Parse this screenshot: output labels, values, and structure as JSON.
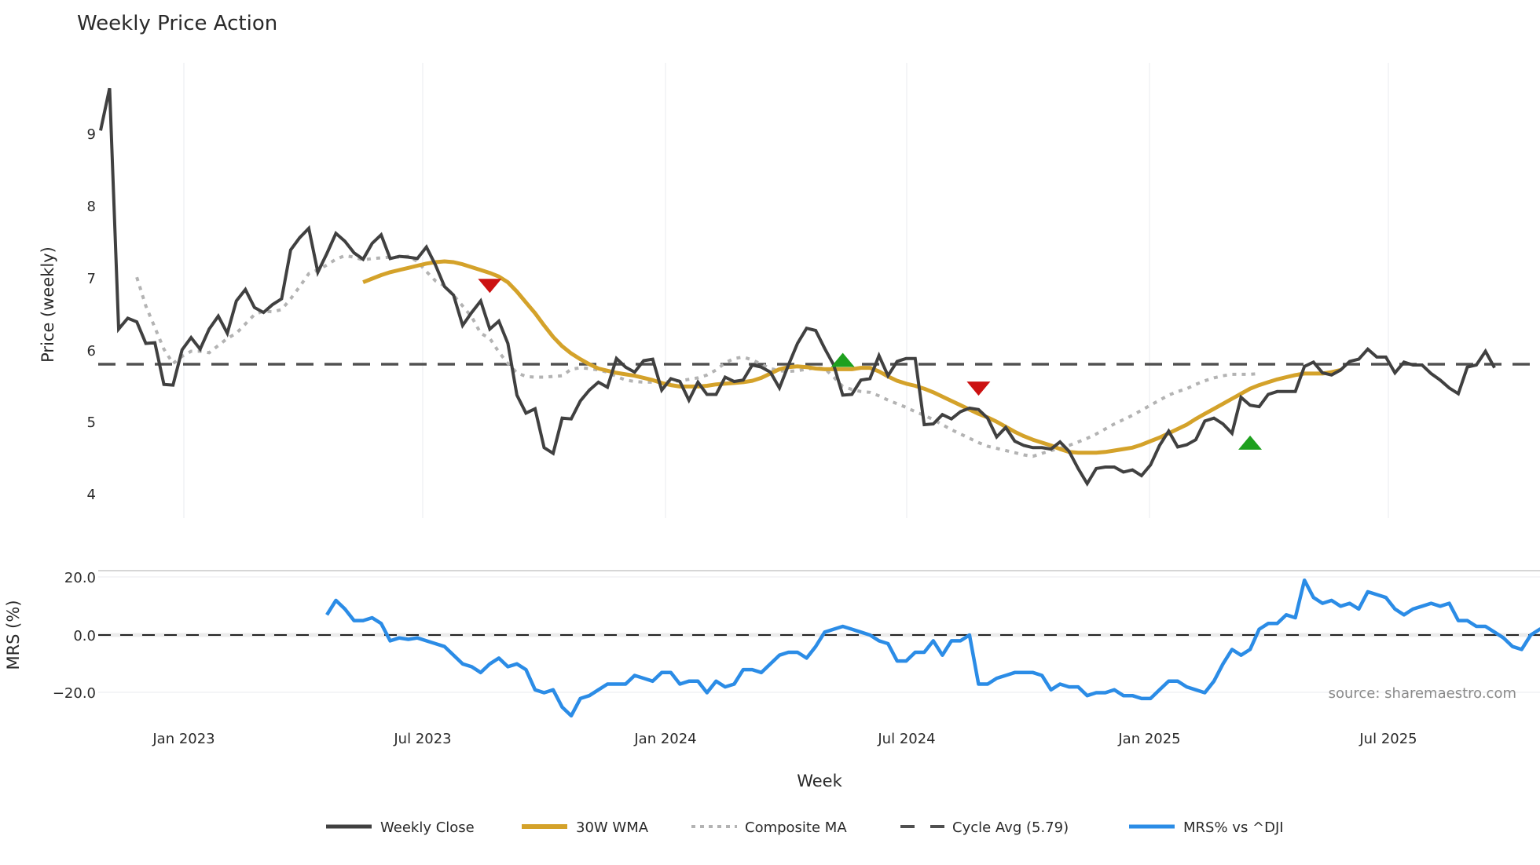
{
  "title": "Weekly Price Action",
  "source_text": "source: sharemaestro.com",
  "legend": [
    {
      "label": "Weekly Close",
      "style": "solid",
      "color": "#404040"
    },
    {
      "label": "30W WMA",
      "style": "solid",
      "color": "#d4a22a"
    },
    {
      "label": "Composite MA",
      "style": "dotted",
      "color": "#b3b3b3"
    },
    {
      "label": "Cycle Avg (5.79)",
      "style": "dashed",
      "color": "#505050"
    },
    {
      "label": "MRS% vs ^DJI",
      "style": "solid",
      "color": "#2b8ce6"
    }
  ],
  "colors": {
    "close": "#404040",
    "wma": "#d4a22a",
    "composite": "#b3b3b3",
    "cycle": "#505050",
    "mrs": "#2b8ce6",
    "sell_marker": "#cc1111",
    "buy_marker": "#1ea01e",
    "grid": "#e9ebef"
  },
  "chart_data": [
    {
      "type": "line",
      "title": "Weekly Price Action",
      "xlabel": "Week",
      "ylabel": "Price (weekly)",
      "ylim": [
        3.9,
        9.7
      ],
      "yticks": [
        4,
        5,
        6,
        7,
        8,
        9
      ],
      "xticks": [
        "Jan 2023",
        "Jul 2023",
        "Jan 2024",
        "Jul 2024",
        "Jan 2025",
        "Jul 2025"
      ],
      "grid": "vertical only",
      "legend_position": "bottom",
      "series": [
        {
          "name": "Weekly Close",
          "start_index": 0,
          "values": [
            9.04,
            9.63,
            6.28,
            6.43,
            6.38,
            6.08,
            6.09,
            5.51,
            5.5,
            5.99,
            6.16,
            6.0,
            6.28,
            6.46,
            6.22,
            6.67,
            6.83,
            6.58,
            6.51,
            6.62,
            6.7,
            7.38,
            7.55,
            7.68,
            7.07,
            7.33,
            7.61,
            7.5,
            7.34,
            7.25,
            7.47,
            7.59,
            7.26,
            7.29,
            7.28,
            7.26,
            7.42,
            7.17,
            6.87,
            6.75,
            6.33,
            6.51,
            6.67,
            6.28,
            6.39,
            6.08,
            5.36,
            5.11,
            5.17,
            4.63,
            4.55,
            5.04,
            5.03,
            5.28,
            5.43,
            5.54,
            5.47,
            5.87,
            5.75,
            5.68,
            5.84,
            5.86,
            5.43,
            5.59,
            5.55,
            5.29,
            5.54,
            5.37,
            5.37,
            5.61,
            5.55,
            5.57,
            5.78,
            5.75,
            5.68,
            5.46,
            5.78,
            6.08,
            6.29,
            6.26,
            6.01,
            5.78,
            5.36,
            5.37,
            5.57,
            5.59,
            5.91,
            5.63,
            5.83,
            5.87,
            5.87,
            4.95,
            4.96,
            5.09,
            5.03,
            5.13,
            5.18,
            5.16,
            5.04,
            4.78,
            4.91,
            4.72,
            4.66,
            4.63,
            4.63,
            4.61,
            4.71,
            4.58,
            4.34,
            4.13,
            4.34,
            4.36,
            4.36,
            4.29,
            4.32,
            4.24,
            4.39,
            4.66,
            4.86,
            4.64,
            4.67,
            4.74,
            5.0,
            5.04,
            4.96,
            4.83,
            5.33,
            5.22,
            5.2,
            5.37,
            5.41,
            5.41,
            5.41,
            5.76,
            5.82,
            5.67,
            5.64,
            5.71,
            5.83,
            5.86,
            6.0,
            5.89,
            5.89,
            5.67,
            5.82,
            5.78,
            5.78,
            5.66,
            5.57,
            5.46,
            5.38,
            5.75,
            5.78,
            5.97,
            5.74
          ]
        },
        {
          "name": "30W WMA",
          "start_index": 29,
          "values": [
            6.93,
            6.98,
            7.03,
            7.07,
            7.1,
            7.13,
            7.16,
            7.19,
            7.21,
            7.22,
            7.21,
            7.18,
            7.14,
            7.1,
            7.06,
            7.01,
            6.93,
            6.8,
            6.65,
            6.5,
            6.33,
            6.17,
            6.04,
            5.94,
            5.86,
            5.79,
            5.73,
            5.7,
            5.67,
            5.65,
            5.63,
            5.6,
            5.57,
            5.53,
            5.5,
            5.48,
            5.48,
            5.48,
            5.49,
            5.51,
            5.52,
            5.53,
            5.54,
            5.56,
            5.6,
            5.66,
            5.72,
            5.75,
            5.76,
            5.75,
            5.73,
            5.72,
            5.72,
            5.72,
            5.72,
            5.74,
            5.74,
            5.69,
            5.62,
            5.56,
            5.52,
            5.49,
            5.45,
            5.4,
            5.34,
            5.28,
            5.22,
            5.16,
            5.1,
            5.05,
            4.99,
            4.92,
            4.85,
            4.79,
            4.74,
            4.7,
            4.66,
            4.61,
            4.57,
            4.56,
            4.56,
            4.56,
            4.57,
            4.59,
            4.61,
            4.63,
            4.67,
            4.72,
            4.77,
            4.83,
            4.89,
            4.95,
            5.03,
            5.1,
            5.17,
            5.24,
            5.31,
            5.38,
            5.45,
            5.5,
            5.54,
            5.58,
            5.61,
            5.64,
            5.66,
            5.66,
            5.66,
            5.68,
            5.71
          ]
        },
        {
          "name": "Composite MA",
          "start_index": 4,
          "values": [
            7.0,
            6.6,
            6.3,
            6.0,
            5.8,
            5.9,
            5.97,
            5.97,
            5.95,
            6.05,
            6.15,
            6.22,
            6.35,
            6.48,
            6.53,
            6.52,
            6.55,
            6.7,
            6.87,
            7.05,
            7.1,
            7.17,
            7.25,
            7.3,
            7.28,
            7.24,
            7.26,
            7.27,
            7.28,
            7.28,
            7.29,
            7.22,
            7.08,
            6.95,
            6.88,
            6.75,
            6.6,
            6.45,
            6.22,
            6.15,
            5.96,
            5.8,
            5.67,
            5.62,
            5.61,
            5.61,
            5.62,
            5.63,
            5.72,
            5.74,
            5.73,
            5.71,
            5.68,
            5.62,
            5.57,
            5.55,
            5.54,
            5.54,
            5.54,
            5.55,
            5.56,
            5.58,
            5.6,
            5.64,
            5.71,
            5.81,
            5.87,
            5.89,
            5.85,
            5.79,
            5.73,
            5.7,
            5.69,
            5.7,
            5.72,
            5.74,
            5.73,
            5.61,
            5.48,
            5.44,
            5.41,
            5.4,
            5.35,
            5.29,
            5.24,
            5.19,
            5.13,
            5.08,
            5.02,
            4.95,
            4.88,
            4.82,
            4.76,
            4.7,
            4.65,
            4.62,
            4.59,
            4.56,
            4.53,
            4.51,
            4.55,
            4.59,
            4.62,
            4.66,
            4.71,
            4.76,
            4.82,
            4.89,
            4.96,
            5.02,
            5.08,
            5.15,
            5.22,
            5.29,
            5.36,
            5.41,
            5.45,
            5.51,
            5.56,
            5.6,
            5.63,
            5.65,
            5.65,
            5.65,
            5.66
          ]
        },
        {
          "name": "Cycle Avg (5.79)",
          "values": [
            5.79
          ]
        }
      ],
      "markers": [
        {
          "type": "sell",
          "shape": "triangle-down",
          "x_index": 43,
          "value": 6.88
        },
        {
          "type": "buy",
          "shape": "triangle-up",
          "x_index": 82,
          "value": 5.85
        },
        {
          "type": "sell",
          "shape": "triangle-down",
          "x_index": 97,
          "value": 5.45
        },
        {
          "type": "buy",
          "shape": "triangle-up",
          "x_index": 127,
          "value": 4.7
        }
      ]
    },
    {
      "type": "line",
      "title": "",
      "xlabel": "Week",
      "ylabel": "MRS (%)",
      "ylim": [
        -28,
        22
      ],
      "yticks": [
        "20.0",
        "0.0",
        "−20.0"
      ],
      "reference_line": 0,
      "series": [
        {
          "name": "MRS% vs ^DJI",
          "start_index": 25,
          "values": [
            7,
            12,
            9,
            5,
            5,
            6,
            4,
            -2,
            -1,
            -1.5,
            -1,
            -2,
            -3,
            -4,
            -7,
            -10,
            -11,
            -13,
            -10,
            -8,
            -11,
            -10,
            -12,
            -19,
            -20,
            -19,
            -25,
            -28,
            -22,
            -21,
            -19,
            -17,
            -17,
            -17,
            -14,
            -15,
            -16,
            -13,
            -13,
            -17,
            -16,
            -16,
            -20,
            -16,
            -18,
            -17,
            -12,
            -12,
            -13,
            -10,
            -7,
            -6,
            -6,
            -8,
            -4,
            1,
            2,
            3,
            2,
            1,
            0,
            -2,
            -3,
            -9,
            -9,
            -6,
            -6,
            -2,
            -7,
            -2,
            -2,
            0,
            -17,
            -17,
            -15,
            -14,
            -13,
            -13,
            -13,
            -14,
            -19,
            -17,
            -18,
            -18,
            -21,
            -20,
            -20,
            -19,
            -21,
            -21,
            -22,
            -22,
            -19,
            -16,
            -16,
            -18,
            -19,
            -20,
            -16,
            -10,
            -5,
            -7,
            -5,
            2,
            4,
            4,
            7,
            6,
            19,
            13,
            11,
            12,
            10,
            11,
            9,
            15,
            14,
            13,
            9,
            7,
            9,
            10,
            11,
            10,
            11,
            5,
            5,
            3,
            3,
            1,
            -1,
            -4,
            -5,
            0,
            2,
            3,
            -2
          ]
        }
      ]
    }
  ]
}
